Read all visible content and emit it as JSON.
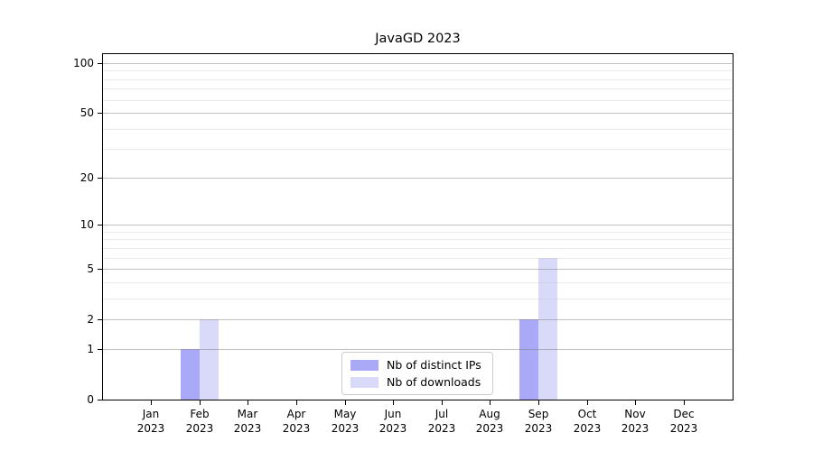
{
  "chart_data": {
    "type": "bar",
    "title": "JavaGD 2023",
    "x_tick_year": "2023",
    "categories": [
      "Jan",
      "Feb",
      "Mar",
      "Apr",
      "May",
      "Jun",
      "Jul",
      "Aug",
      "Sep",
      "Oct",
      "Nov",
      "Dec"
    ],
    "series": [
      {
        "name": "Nb of distinct IPs",
        "color": "#a9a9f7",
        "values": [
          0,
          1,
          0,
          0,
          0,
          0,
          0,
          0,
          2,
          0,
          0,
          0
        ]
      },
      {
        "name": "Nb of downloads",
        "color": "#d9daf9",
        "values": [
          0,
          2,
          0,
          0,
          0,
          0,
          0,
          0,
          6,
          0,
          0,
          0
        ]
      }
    ],
    "y_axis": {
      "scale": "log1p",
      "major_ticks": [
        0,
        1,
        2,
        5,
        10,
        20,
        50,
        100
      ],
      "minor_gridlines": [
        3,
        4,
        6,
        7,
        8,
        9,
        30,
        40,
        60,
        70,
        80,
        90
      ],
      "ylim": [
        0,
        113
      ]
    },
    "legend": {
      "position": "bottom-center"
    },
    "grid": true
  },
  "colors": {
    "background": "#ffffff",
    "axis": "#000000",
    "major_gridline": "#c9c9c9",
    "minor_gridline": "#ececec",
    "bar_distinct_ips": "#a9a9f7",
    "bar_downloads": "#d9daf9",
    "legend_border": "#cccccc"
  }
}
